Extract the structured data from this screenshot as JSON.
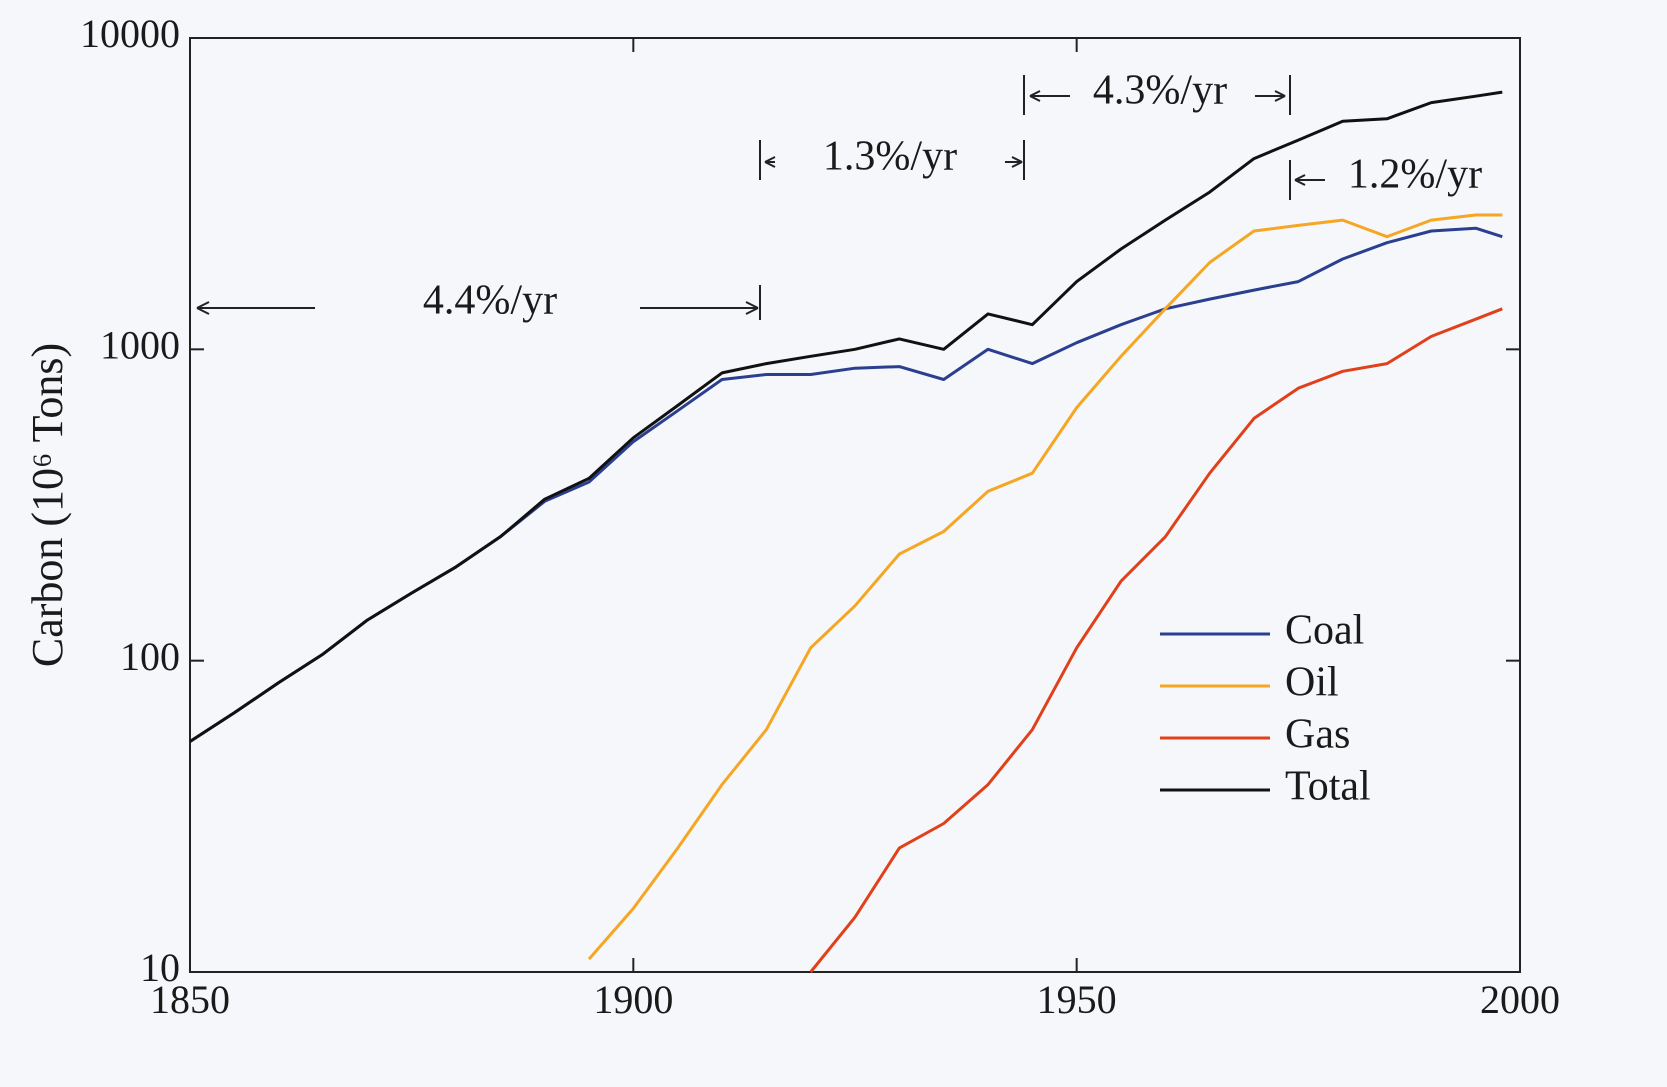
{
  "chart_data": {
    "type": "line",
    "y_label": "Carbon (10⁶ Tons)",
    "yscale": "log",
    "x": [
      1850,
      1855,
      1860,
      1865,
      1870,
      1875,
      1880,
      1885,
      1890,
      1895,
      1900,
      1905,
      1910,
      1915,
      1920,
      1925,
      1930,
      1935,
      1940,
      1945,
      1950,
      1955,
      1960,
      1965,
      1970,
      1975,
      1980,
      1985,
      1990,
      1995,
      1998
    ],
    "series": [
      {
        "name": "Coal",
        "color": "#2b3f91",
        "values": [
          55,
          68,
          85,
          105,
          135,
          165,
          200,
          250,
          325,
          375,
          505,
          635,
          800,
          830,
          830,
          870,
          880,
          800,
          1000,
          900,
          1050,
          1200,
          1350,
          1450,
          1550,
          1650,
          1950,
          2200,
          2400,
          2450,
          2300
        ]
      },
      {
        "name": "Oil",
        "color": "#f5a623",
        "values": [
          null,
          null,
          null,
          null,
          null,
          null,
          null,
          null,
          null,
          11,
          16,
          25,
          40,
          60,
          110,
          150,
          220,
          260,
          350,
          400,
          650,
          950,
          1350,
          1900,
          2400,
          2500,
          2600,
          2300,
          2600,
          2700,
          2700
        ]
      },
      {
        "name": "Gas",
        "color": "#e0401a",
        "values": [
          null,
          null,
          null,
          null,
          null,
          null,
          null,
          null,
          null,
          null,
          null,
          null,
          null,
          null,
          10,
          15,
          25,
          30,
          40,
          60,
          110,
          180,
          250,
          400,
          600,
          750,
          850,
          900,
          1100,
          1250,
          1350
        ]
      },
      {
        "name": "Total",
        "color": "#111111",
        "values": [
          55,
          68,
          85,
          105,
          135,
          165,
          200,
          250,
          330,
          385,
          520,
          660,
          840,
          900,
          950,
          1000,
          1080,
          1000,
          1300,
          1200,
          1650,
          2100,
          2600,
          3200,
          4100,
          4700,
          5400,
          5500,
          6200,
          6500,
          6700
        ]
      }
    ],
    "xlim": [
      1850,
      2000
    ],
    "xticks": [
      1850,
      1900,
      1950,
      2000
    ],
    "ylim": [
      10,
      10000
    ],
    "yticks": [
      10,
      100,
      1000,
      10000
    ],
    "grid": false,
    "legend": "lower right",
    "annotations": [
      "4.4%/yr",
      "1.3%/yr",
      "4.3%/yr",
      "1.2%/yr"
    ]
  }
}
